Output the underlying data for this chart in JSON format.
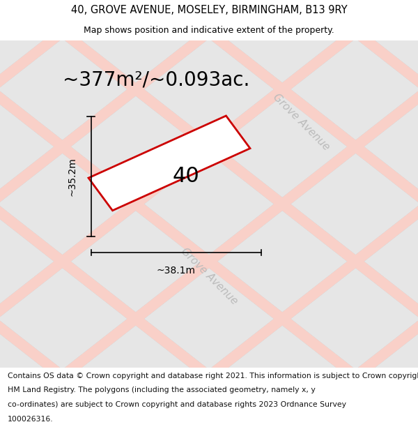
{
  "title_line1": "40, GROVE AVENUE, MOSELEY, BIRMINGHAM, B13 9RY",
  "title_line2": "Map shows position and indicative extent of the property.",
  "area_text": "~377m²/~0.093ac.",
  "plot_number": "40",
  "dim_height": "~35.2m",
  "dim_width": "~38.1m",
  "street_label": "Grove Avenue",
  "footer_lines": [
    "Contains OS data © Crown copyright and database right 2021. This information is subject to Crown copyright and database rights 2023 and is reproduced with the permission of",
    "HM Land Registry. The polygons (including the associated geometry, namely x, y",
    "co-ordinates) are subject to Crown copyright and database rights 2023 Ordnance Survey",
    "100026316."
  ],
  "bg_color": "#ffffff",
  "map_bg": "#ffffff",
  "plot_fill": "#ffffff",
  "plot_edge": "#cc0000",
  "block_fill": "#e6e6e6",
  "block_stroke": "#cccccc",
  "road_color": "#f9d0c8",
  "title_fontsize": 10.5,
  "subtitle_fontsize": 9,
  "area_fontsize": 20,
  "label_fontsize": 22,
  "dim_fontsize": 10,
  "footer_fontsize": 7.8,
  "street_fontsize": 11
}
